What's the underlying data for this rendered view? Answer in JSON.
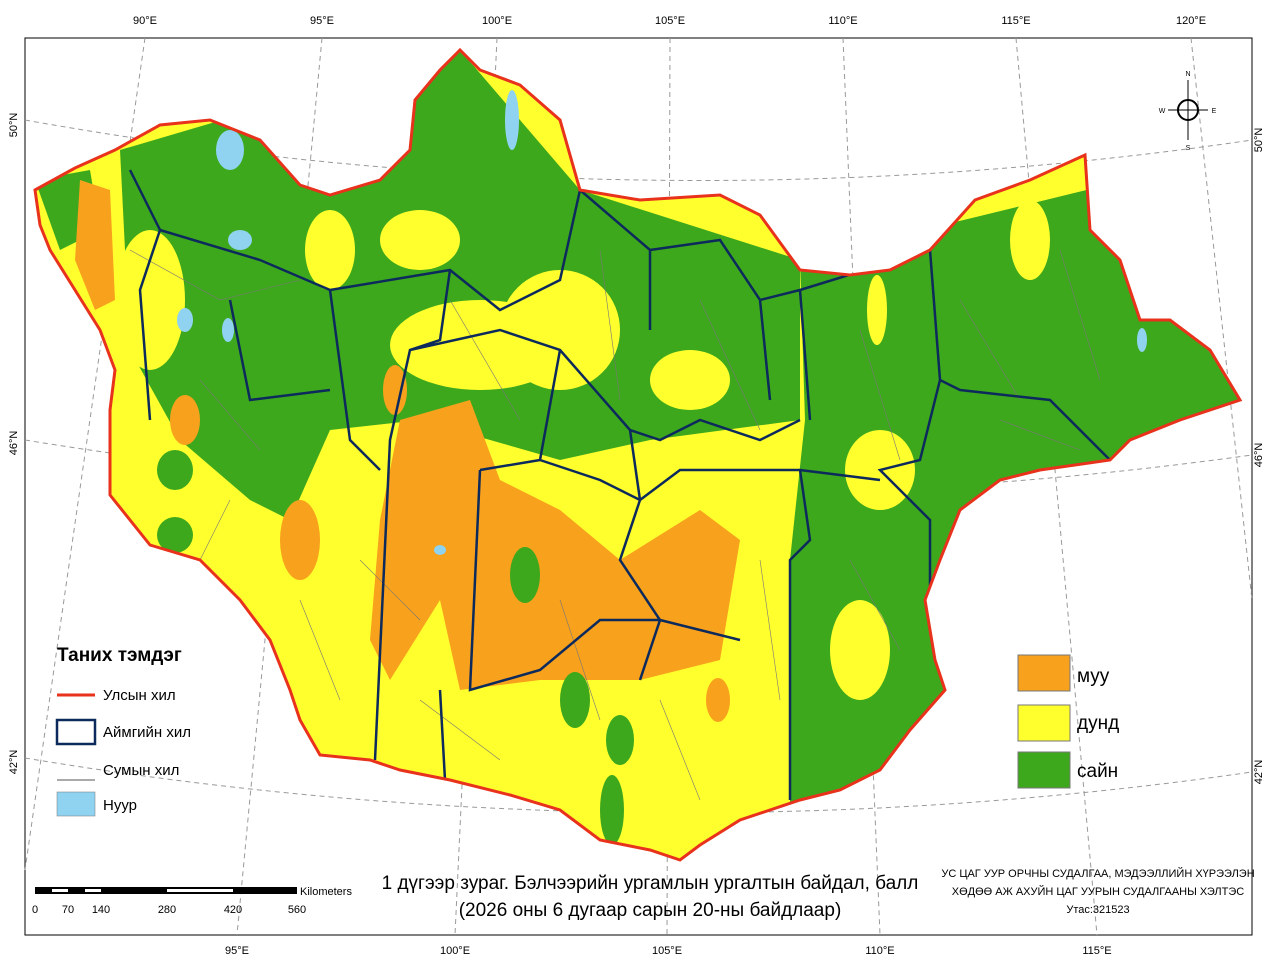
{
  "graticule": {
    "top": [
      "90°E",
      "95°E",
      "100°E",
      "105°E",
      "110°E",
      "115°E",
      "120°E"
    ],
    "bottom": [
      "95°E",
      "100°E",
      "105°E",
      "110°E",
      "115°E"
    ],
    "left": [
      "50°N",
      "46°N",
      "42°N"
    ],
    "right": [
      "50°N",
      "46°N",
      "42°N"
    ]
  },
  "compass": [
    "N",
    "E",
    "S",
    "W"
  ],
  "legend_left": {
    "title": "Таних тэмдэг",
    "items": [
      "Улсын хил",
      "Аймгийн хил",
      "Сумын хил",
      "Нуур"
    ]
  },
  "legend_right": {
    "items": [
      "муу",
      "дунд",
      "сайн"
    ]
  },
  "scale_bar": {
    "unit": "Kilometers",
    "labels": [
      0,
      70,
      140,
      280,
      420,
      560
    ]
  },
  "caption": [
    "1 дүгээр зураг. Бэлчээрийн ургамлын ургалтын байдал, балл",
    "(2026 оны 6 дугаар сарын 20-ны байдлаар)"
  ],
  "credits": [
    "УС ЦАГ УУР ОРЧНЫ СУДАЛГАА, МЭДЭЭЛЛИЙН ХҮРЭЭЛЭН",
    "ХӨДӨӨ АЖ АХУЙН ЦАГ УУРЫН СУДАЛГААНЫ ХЭЛТЭС",
    "Утас:321523"
  ]
}
